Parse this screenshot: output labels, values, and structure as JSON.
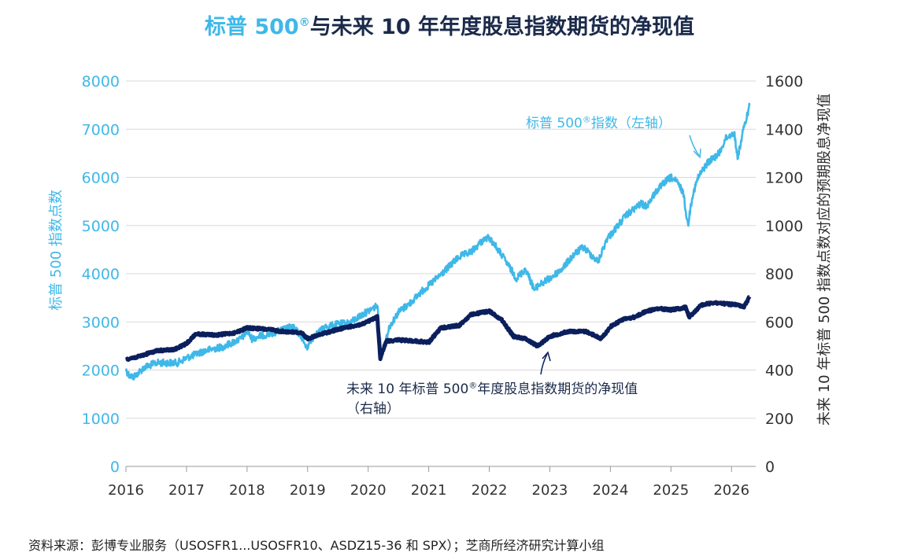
{
  "title": {
    "part1": "标普 500",
    "mark": "®",
    "part2": "与未来 10 年年度股息指数期货的净现值"
  },
  "colors": {
    "spx": "#3fb8e8",
    "npv": "#0b1f5c",
    "grid": "#d9d9d9",
    "title_dark": "#1b2a4a"
  },
  "annotations": {
    "spx_label": "标普 500",
    "spx_mark": "®",
    "spx_label_rest": "指数（左轴）",
    "npv_label": "未来 10 年标普 500",
    "npv_mark": "®",
    "npv_label_rest": "年度股息指数期货的净现值",
    "npv_axis_note": "（右轴）"
  },
  "source": "资料来源：彭博专业服务（USOSFR1...USOSFR10、ASDZ15-36 和 SPX）；芝商所经济研究计算小组",
  "chart_data": {
    "type": "line",
    "xlabel": "",
    "ylabel": "标普 500 指数点数",
    "ylabel_right": "未来 10 年标普 500 指数点数对应的预期股息净现值",
    "x_ticks": [
      "2016",
      "2017",
      "2018",
      "2019",
      "2020",
      "2021",
      "2022",
      "2023",
      "2024",
      "2025",
      "2026"
    ],
    "ylim": [
      0,
      8000
    ],
    "y_ticks": [
      0,
      1000,
      2000,
      3000,
      4000,
      5000,
      6000,
      7000,
      8000
    ],
    "ylim_right": [
      0,
      1600
    ],
    "y_ticks_right": [
      0,
      200,
      400,
      600,
      800,
      1000,
      1200,
      1400,
      1600
    ],
    "grid": true,
    "series": [
      {
        "name": "标普 500® 指数（左轴）",
        "axis": "left",
        "color": "#3fb8e8",
        "x": [
          2016.0,
          2016.05,
          2016.12,
          2016.3,
          2016.5,
          2016.7,
          2016.85,
          2017.0,
          2017.3,
          2017.6,
          2017.9,
          2018.0,
          2018.08,
          2018.2,
          2018.5,
          2018.75,
          2018.9,
          2018.98,
          2019.1,
          2019.3,
          2019.5,
          2019.7,
          2019.9,
          2020.1,
          2020.15,
          2020.22,
          2020.35,
          2020.5,
          2020.7,
          2020.9,
          2021.0,
          2021.3,
          2021.5,
          2021.7,
          2021.9,
          2022.0,
          2022.2,
          2022.45,
          2022.6,
          2022.75,
          2022.8,
          2023.0,
          2023.2,
          2023.4,
          2023.55,
          2023.8,
          2023.95,
          2024.0,
          2024.25,
          2024.5,
          2024.6,
          2024.75,
          2024.9,
          2025.0,
          2025.1,
          2025.2,
          2025.28,
          2025.35,
          2025.45,
          2025.6,
          2025.8,
          2025.9,
          2026.0,
          2026.05,
          2026.1,
          2026.2,
          2026.3
        ],
        "values": [
          2000,
          1900,
          1850,
          2050,
          2150,
          2150,
          2150,
          2250,
          2400,
          2480,
          2650,
          2800,
          2650,
          2700,
          2800,
          2900,
          2700,
          2450,
          2700,
          2900,
          2950,
          2980,
          3150,
          3300,
          3350,
          2300,
          2900,
          3200,
          3400,
          3650,
          3750,
          4100,
          4350,
          4450,
          4700,
          4750,
          4400,
          3900,
          4100,
          3650,
          3750,
          3900,
          4100,
          4400,
          4550,
          4250,
          4750,
          4800,
          5200,
          5450,
          5400,
          5700,
          5900,
          6000,
          5900,
          5700,
          5000,
          5600,
          6000,
          6300,
          6500,
          6800,
          6900,
          6900,
          6400,
          7000,
          7500
        ]
      },
      {
        "name": "未来 10 年标普 500® 年度股息指数期货的净现值（右轴）",
        "axis": "right",
        "color": "#0b1f5c",
        "x": [
          2016.0,
          2016.2,
          2016.5,
          2016.8,
          2017.0,
          2017.15,
          2017.5,
          2017.8,
          2018.0,
          2018.3,
          2018.6,
          2018.9,
          2019.0,
          2019.3,
          2019.6,
          2019.9,
          2020.15,
          2020.2,
          2020.3,
          2020.5,
          2020.8,
          2021.0,
          2021.2,
          2021.5,
          2021.7,
          2022.0,
          2022.2,
          2022.4,
          2022.6,
          2022.8,
          2023.0,
          2023.3,
          2023.6,
          2023.85,
          2024.0,
          2024.2,
          2024.4,
          2024.6,
          2024.8,
          2025.0,
          2025.25,
          2025.3,
          2025.5,
          2025.7,
          2025.9,
          2026.1,
          2026.2,
          2026.3
        ],
        "values": [
          445,
          455,
          480,
          485,
          510,
          550,
          545,
          555,
          575,
          570,
          560,
          555,
          530,
          555,
          575,
          590,
          620,
          450,
          520,
          525,
          520,
          515,
          575,
          585,
          630,
          645,
          610,
          540,
          530,
          500,
          540,
          560,
          560,
          530,
          580,
          610,
          620,
          645,
          655,
          650,
          660,
          620,
          670,
          680,
          675,
          670,
          660,
          705
        ]
      }
    ]
  }
}
